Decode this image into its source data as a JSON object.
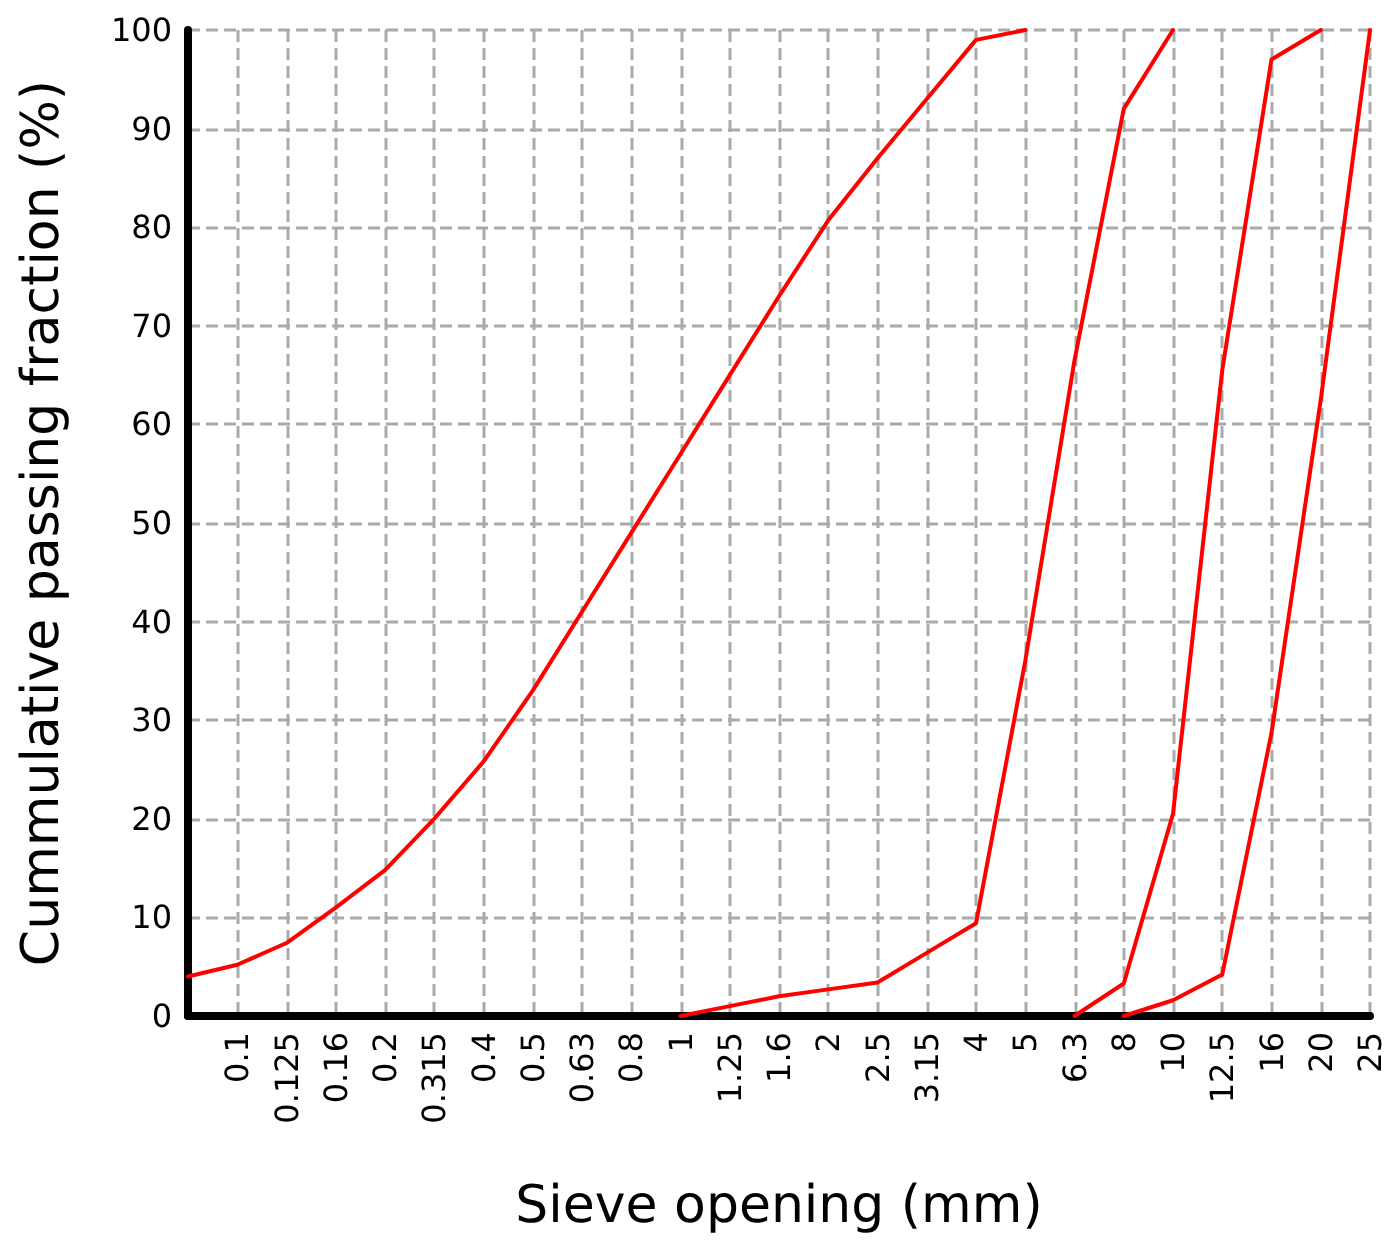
{
  "chart_data": {
    "type": "line",
    "xlabel": "Sieve opening (mm)",
    "ylabel": "Cummulative passing fraction (%)",
    "categories": [
      null,
      "0.1",
      "0.125",
      "0.16",
      "0.2",
      "0.315",
      "0.4",
      "0.5",
      "0.63",
      "0.8",
      "1",
      "1.25",
      "1.6",
      "2",
      "2.5",
      "3.15",
      "4",
      "5",
      "6.3",
      "8",
      "10",
      "12.5",
      "16",
      "20",
      "25"
    ],
    "series": [
      {
        "color": "#ff0000",
        "values": [
          4,
          5.2,
          7.4,
          11,
          14.8,
          20,
          25.8,
          33,
          41,
          49,
          57,
          65,
          73,
          80.7,
          87,
          93,
          99,
          100,
          null,
          null,
          null,
          null,
          null,
          null,
          null
        ]
      },
      {
        "color": "#ff0000",
        "values": [
          null,
          null,
          null,
          null,
          null,
          null,
          null,
          null,
          null,
          null,
          0,
          1,
          2,
          2.7,
          3.4,
          6.4,
          9.4,
          36,
          66.5,
          92,
          100,
          null,
          null,
          null,
          null
        ]
      },
      {
        "color": "#ff0000",
        "values": [
          null,
          null,
          null,
          null,
          null,
          null,
          null,
          null,
          null,
          null,
          null,
          null,
          null,
          null,
          null,
          null,
          null,
          null,
          0,
          3.3,
          20.5,
          65.5,
          97,
          100,
          null
        ]
      },
      {
        "color": "#ff0000",
        "values": [
          null,
          null,
          null,
          null,
          null,
          null,
          null,
          null,
          null,
          null,
          null,
          null,
          null,
          null,
          null,
          null,
          null,
          null,
          null,
          0,
          1.6,
          4.2,
          28.7,
          62.5,
          100
        ]
      }
    ],
    "ylim": [
      0,
      100
    ],
    "yticks": [
      0,
      10,
      20,
      30,
      40,
      50,
      60,
      70,
      80,
      90,
      100
    ],
    "grid": true,
    "marker": "none",
    "line_style": "solid"
  }
}
